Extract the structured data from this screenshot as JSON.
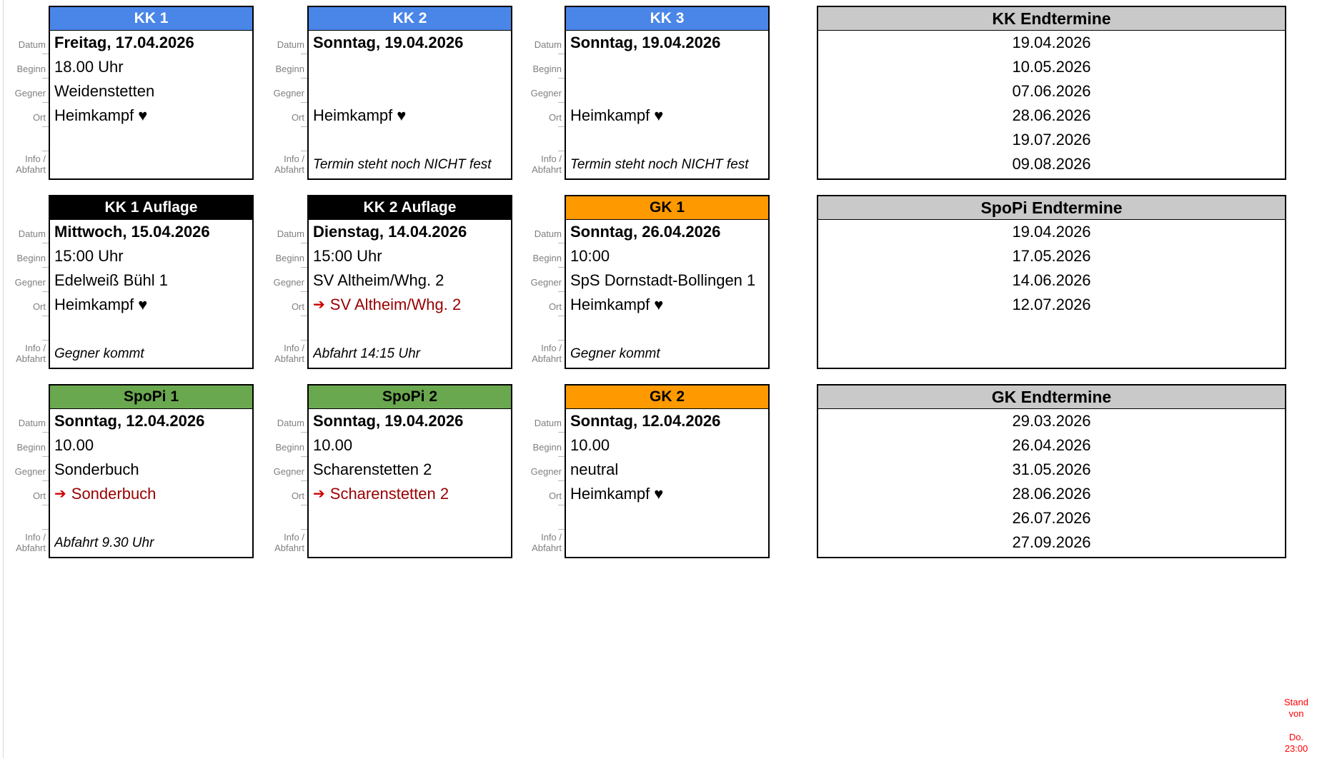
{
  "row_labels": [
    "Datum",
    "Beginn",
    "Gegner",
    "Ort",
    "Info /\nAbfahrt"
  ],
  "icons": {
    "heart": "♥",
    "away_arrow": "➔"
  },
  "colors": {
    "blue": "#4a86e8",
    "black": "#000000",
    "orange": "#ff9900",
    "green": "#6aa84f",
    "gray_header": "#c9c9c9",
    "away_red": "#990000",
    "arrow_red": "#cc0000",
    "notice_red": "#ff0000",
    "label_gray": "#808080",
    "white": "#ffffff"
  },
  "cards": [
    {
      "id": "kk-1",
      "row": 0,
      "col": 0,
      "title": "KK 1",
      "header": "blue",
      "header_text": "white",
      "datum": "Freitag, 17.04.2026",
      "beginn": "18.00 Uhr",
      "gegner": "Weidenstetten",
      "ort": "Heimkampf",
      "ort_type": "home",
      "info": ""
    },
    {
      "id": "kk-2",
      "row": 0,
      "col": 1,
      "title": "KK 2",
      "header": "blue",
      "header_text": "white",
      "datum": "Sonntag, 19.04.2026",
      "beginn": "",
      "gegner": "",
      "ort": "Heimkampf",
      "ort_type": "home",
      "info": "Termin steht noch NICHT fest"
    },
    {
      "id": "kk-3",
      "row": 0,
      "col": 2,
      "title": "KK 3",
      "header": "blue",
      "header_text": "white",
      "datum": "Sonntag, 19.04.2026",
      "beginn": "",
      "gegner": "",
      "ort": "Heimkampf",
      "ort_type": "home",
      "info": "Termin steht noch NICHT fest"
    },
    {
      "id": "kk-1-auflage",
      "row": 1,
      "col": 0,
      "title": "KK 1 Auflage",
      "header": "black",
      "header_text": "white",
      "datum": "Mittwoch, 15.04.2026",
      "beginn": "15:00 Uhr",
      "gegner": "Edelweiß Bühl 1",
      "ort": "Heimkampf",
      "ort_type": "home",
      "info": "Gegner kommt"
    },
    {
      "id": "kk-2-auflage",
      "row": 1,
      "col": 1,
      "title": "KK 2 Auflage",
      "header": "black",
      "header_text": "white",
      "datum": "Dienstag, 14.04.2026",
      "beginn": "15:00 Uhr",
      "gegner": "SV Altheim/Whg. 2",
      "ort": "SV Altheim/Whg. 2",
      "ort_type": "away",
      "info": "Abfahrt 14:15 Uhr"
    },
    {
      "id": "gk-1",
      "row": 1,
      "col": 2,
      "title": "GK 1",
      "header": "orange",
      "header_text": "black",
      "datum": "Sonntag, 26.04.2026",
      "beginn": "10:00",
      "gegner": "SpS Dornstadt-Bollingen 1",
      "ort": "Heimkampf",
      "ort_type": "home",
      "info": "Gegner kommt"
    },
    {
      "id": "spopi-1",
      "row": 2,
      "col": 0,
      "title": "SpoPi 1",
      "header": "green",
      "header_text": "black",
      "datum": "Sonntag, 12.04.2026",
      "beginn": "10.00",
      "gegner": "Sonderbuch",
      "ort": "Sonderbuch",
      "ort_type": "away",
      "info": "Abfahrt 9.30 Uhr"
    },
    {
      "id": "spopi-2",
      "row": 2,
      "col": 1,
      "title": "SpoPi 2",
      "header": "green",
      "header_text": "black",
      "datum": "Sonntag, 19.04.2026",
      "beginn": "10.00",
      "gegner": "Scharenstetten 2",
      "ort": "Scharenstetten 2",
      "ort_type": "away",
      "info": ""
    },
    {
      "id": "gk-2",
      "row": 2,
      "col": 2,
      "title": "GK 2",
      "header": "orange",
      "header_text": "black",
      "datum": "Sonntag, 12.04.2026",
      "beginn": "10.00",
      "gegner": "neutral",
      "ort": "Heimkampf",
      "ort_type": "home",
      "info": ""
    }
  ],
  "endtermine": [
    {
      "id": "kk-endtermine",
      "row": 0,
      "title": "KK Endtermine",
      "dates": [
        "19.04.2026",
        "10.05.2026",
        "07.06.2026",
        "28.06.2026",
        "19.07.2026",
        "09.08.2026"
      ]
    },
    {
      "id": "spopi-endtermine",
      "row": 1,
      "title": "SpoPi Endtermine",
      "dates": [
        "19.04.2026",
        "17.05.2026",
        "14.06.2026",
        "12.07.2026"
      ]
    },
    {
      "id": "gk-endtermine",
      "row": 2,
      "title": "GK Endtermine",
      "dates": [
        "29.03.2026",
        "26.04.2026",
        "31.05.2026",
        "28.06.2026",
        "26.07.2026",
        "27.09.2026"
      ]
    }
  ],
  "notice": {
    "line1": "Stand\nvon",
    "line2": "Do.\n23:00"
  }
}
